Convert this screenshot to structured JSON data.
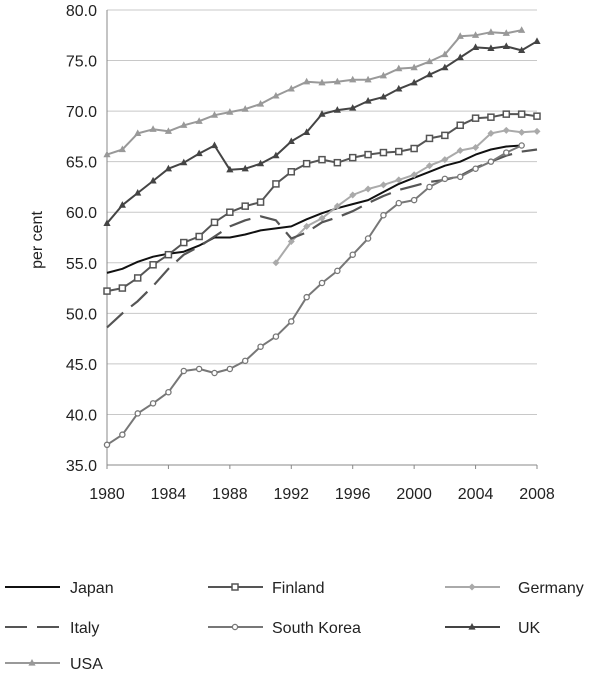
{
  "chart_data": {
    "type": "line",
    "title": "",
    "xlabel": "",
    "ylabel": "per cent",
    "xlim": [
      1980,
      2008
    ],
    "ylim": [
      35,
      80
    ],
    "x_ticks": [
      "1980",
      "1984",
      "1988",
      "1992",
      "1996",
      "2000",
      "2004",
      "2008"
    ],
    "y_ticks": [
      "35.0",
      "40.0",
      "45.0",
      "50.0",
      "55.0",
      "60.0",
      "65.0",
      "70.0",
      "75.0",
      "80.0"
    ],
    "grid": "horizontal",
    "legend_position": "bottom",
    "series": [
      {
        "name": "Japan",
        "color": "#111111",
        "style": "solid",
        "marker": "none",
        "x": [
          1980,
          1981,
          1982,
          1983,
          1984,
          1985,
          1986,
          1987,
          1988,
          1989,
          1990,
          1991,
          1992,
          1993,
          1994,
          1995,
          1996,
          1997,
          1998,
          1999,
          2000,
          2001,
          2002,
          2003,
          2004,
          2005,
          2006,
          2007
        ],
        "y": [
          54.0,
          54.4,
          55.1,
          55.6,
          55.9,
          56.1,
          56.7,
          57.5,
          57.5,
          57.8,
          58.2,
          58.4,
          58.6,
          59.3,
          59.9,
          60.4,
          60.8,
          61.2,
          62.0,
          62.8,
          63.4,
          64.0,
          64.6,
          65.0,
          65.7,
          66.2,
          66.5,
          66.6
        ]
      },
      {
        "name": "Finland",
        "color": "#555555",
        "style": "solid",
        "marker": "square",
        "x": [
          1980,
          1981,
          1982,
          1983,
          1984,
          1985,
          1986,
          1987,
          1988,
          1989,
          1990,
          1991,
          1992,
          1993,
          1994,
          1995,
          1996,
          1997,
          1998,
          1999,
          2000,
          2001,
          2002,
          2003,
          2004,
          2005,
          2006,
          2007,
          2008
        ],
        "y": [
          52.2,
          52.5,
          53.5,
          54.8,
          55.8,
          57.0,
          57.6,
          59.0,
          60.0,
          60.6,
          61.0,
          62.8,
          64.0,
          64.8,
          65.2,
          64.9,
          65.4,
          65.7,
          65.9,
          66.0,
          66.3,
          67.3,
          67.6,
          68.6,
          69.3,
          69.4,
          69.7,
          69.7,
          69.5
        ]
      },
      {
        "name": "Germany",
        "color": "#aaaaaa",
        "style": "solid",
        "marker": "diamond",
        "x": [
          1991,
          1992,
          1993,
          1994,
          1995,
          1996,
          1997,
          1998,
          1999,
          2000,
          2001,
          2002,
          2003,
          2004,
          2005,
          2006,
          2007,
          2008
        ],
        "y": [
          55.0,
          57.1,
          58.6,
          59.4,
          60.6,
          61.7,
          62.3,
          62.7,
          63.2,
          63.7,
          64.6,
          65.2,
          66.1,
          66.4,
          67.8,
          68.1,
          67.9,
          68.0
        ]
      },
      {
        "name": "Italy",
        "color": "#555555",
        "style": "dashed",
        "marker": "none",
        "x": [
          1980,
          1981,
          1982,
          1983,
          1984,
          1985,
          1986,
          1987,
          1988,
          1989,
          1990,
          1991,
          1992,
          1993,
          1994,
          1995,
          1996,
          1997,
          1998,
          1999,
          2000,
          2001,
          2002,
          2003,
          2004,
          2005,
          2006,
          2007,
          2008
        ],
        "y": [
          48.6,
          50.0,
          51.2,
          52.7,
          54.4,
          55.8,
          56.6,
          57.6,
          58.6,
          59.2,
          59.6,
          59.2,
          57.4,
          58.0,
          59.0,
          59.5,
          60.1,
          60.9,
          61.6,
          62.2,
          62.6,
          63.0,
          63.2,
          63.6,
          64.4,
          65.0,
          65.6,
          66.0,
          66.2
        ]
      },
      {
        "name": "South Korea",
        "color": "#777777",
        "style": "solid",
        "marker": "circle",
        "x": [
          1980,
          1981,
          1982,
          1983,
          1984,
          1985,
          1986,
          1987,
          1988,
          1989,
          1990,
          1991,
          1992,
          1993,
          1994,
          1995,
          1996,
          1997,
          1998,
          1999,
          2000,
          2001,
          2002,
          2003,
          2004,
          2005,
          2006,
          2007
        ],
        "y": [
          37.0,
          38.0,
          40.1,
          41.1,
          42.2,
          44.3,
          44.5,
          44.1,
          44.5,
          45.3,
          46.7,
          47.7,
          49.2,
          51.6,
          53.0,
          54.2,
          55.8,
          57.4,
          59.7,
          60.9,
          61.2,
          62.5,
          63.3,
          63.5,
          64.3,
          65.0,
          65.9,
          66.6
        ]
      },
      {
        "name": "UK",
        "color": "#444444",
        "style": "solid",
        "marker": "triangle",
        "x": [
          1980,
          1981,
          1982,
          1983,
          1984,
          1985,
          1986,
          1987,
          1988,
          1989,
          1990,
          1991,
          1992,
          1993,
          1994,
          1995,
          1996,
          1997,
          1998,
          1999,
          2000,
          2001,
          2002,
          2003,
          2004,
          2005,
          2006,
          2007,
          2008
        ],
        "y": [
          58.9,
          60.7,
          61.9,
          63.1,
          64.3,
          64.9,
          65.8,
          66.6,
          64.2,
          64.3,
          64.8,
          65.6,
          67.0,
          67.9,
          69.7,
          70.1,
          70.3,
          71.0,
          71.4,
          72.2,
          72.8,
          73.6,
          74.3,
          75.3,
          76.3,
          76.2,
          76.4,
          76.0,
          76.9
        ]
      },
      {
        "name": "USA",
        "color": "#999999",
        "style": "solid",
        "marker": "triangle",
        "x": [
          1980,
          1981,
          1982,
          1983,
          1984,
          1985,
          1986,
          1987,
          1988,
          1989,
          1990,
          1991,
          1992,
          1993,
          1994,
          1995,
          1996,
          1997,
          1998,
          1999,
          2000,
          2001,
          2002,
          2003,
          2004,
          2005,
          2006,
          2007
        ],
        "y": [
          65.7,
          66.2,
          67.8,
          68.2,
          68.0,
          68.6,
          69.0,
          69.6,
          69.9,
          70.2,
          70.7,
          71.5,
          72.2,
          72.9,
          72.8,
          72.9,
          73.1,
          73.1,
          73.5,
          74.2,
          74.3,
          74.9,
          75.6,
          77.4,
          77.5,
          77.8,
          77.7,
          78.0
        ]
      }
    ]
  }
}
